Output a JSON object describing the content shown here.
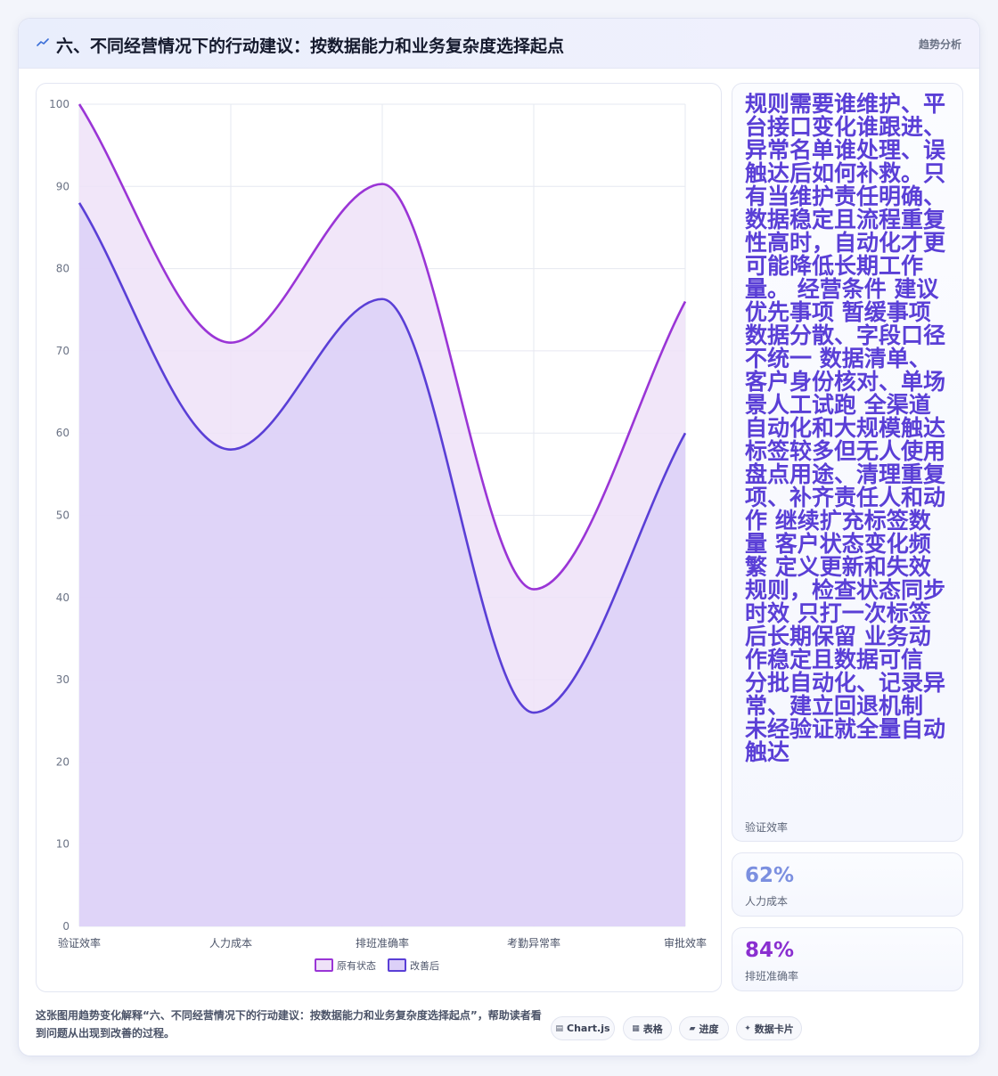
{
  "header": {
    "title": "六、不同经营情况下的行动建议：按数据能力和业务复杂度选择起点",
    "tag": "趋势分析"
  },
  "chart_data": {
    "type": "area",
    "categories": [
      "验证效率",
      "人力成本",
      "排班准确率",
      "考勤异常率",
      "审批效率"
    ],
    "series": [
      {
        "name": "原有状态",
        "values": [
          100,
          71,
          90.3,
          41,
          76
        ],
        "color": "#9a35d6",
        "fill": "#efe2f8"
      },
      {
        "name": "改善后",
        "values": [
          88,
          58,
          76.3,
          26,
          60
        ],
        "color": "#5a3fd6",
        "fill": "#dcd0f8"
      }
    ],
    "y_ticks": [
      0,
      10,
      20,
      30,
      40,
      50,
      60,
      70,
      80,
      90,
      100
    ],
    "ylim": [
      0,
      100
    ],
    "grid": true,
    "legend_position": "bottom",
    "curve": "smooth"
  },
  "side": {
    "main": {
      "text": "规则需要谁维护、平台接口变化谁跟进、异常名单谁处理、误触达后如何补救。只有当维护责任明确、数据稳定且流程重复性高时，自动化才更可能降低长期工作量。 经营条件 建议优先事项 暂缓事项 数据分散、字段口径不统一 数据清单、客户身份核对、单场景人工试跑 全渠道自动化和大规模触达 标签较多但无人使用 盘点用途、清理重复项、补齐责任人和动作 继续扩充标签数量 客户状态变化频繁 定义更新和失效规则，检查状态同步时效 只打一次标签后长期保留 业务动作稳定且数据可信 分批自动化、记录异常、建立回退机制 未经验证就全量自动触达",
      "label": "验证效率"
    },
    "kpis": [
      {
        "value": "62%",
        "label": "人力成本",
        "color": "#7b8fe0"
      },
      {
        "value": "84%",
        "label": "排班准确率",
        "color": "#8a2fd0"
      }
    ]
  },
  "footer": {
    "text": "这张图用趋势变化解释“六、不同经营情况下的行动建议：按数据能力和业务复杂度选择起点”，帮助读者看到问题从出现到改善的过程。",
    "chips": [
      {
        "icon": "▤",
        "label": "Chart.js"
      },
      {
        "icon": "▦",
        "label": "表格"
      },
      {
        "icon": "▰",
        "label": "进度"
      },
      {
        "icon": "✦",
        "label": "数据卡片"
      }
    ]
  }
}
